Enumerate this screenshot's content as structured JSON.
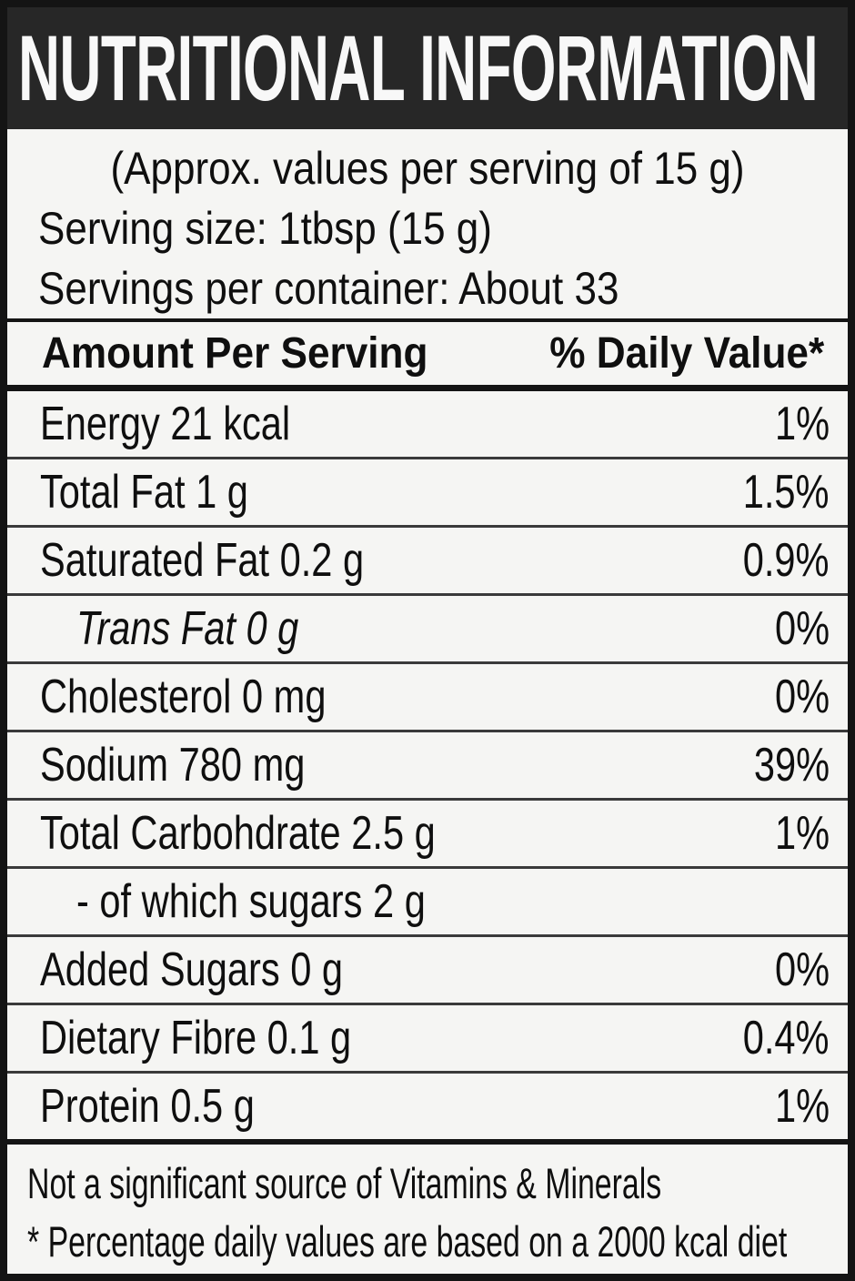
{
  "header": {
    "title": "NUTRITIONAL INFORMATION"
  },
  "serving_info": {
    "approx_note": "(Approx. values per serving of 15 g)",
    "serving_size": "Serving size: 1tbsp (15 g)",
    "servings_per_container": "Servings per container: About 33"
  },
  "table": {
    "col1_header": "Amount Per Serving",
    "col2_header": "% Daily Value*",
    "rows": [
      {
        "label": "Energy 21 kcal",
        "daily_value": "1%"
      },
      {
        "label": "Total Fat 1 g",
        "daily_value": "1.5%"
      },
      {
        "label": "Saturated Fat 0.2 g",
        "daily_value": "0.9%"
      },
      {
        "label": "Trans Fat 0 g",
        "daily_value": "0%",
        "italic": true,
        "indent": true
      },
      {
        "label": "Cholesterol 0 mg",
        "daily_value": "0%"
      },
      {
        "label": "Sodium 780 mg",
        "daily_value": "39%"
      },
      {
        "label": "Total Carbohdrate 2.5 g",
        "daily_value": "1%"
      },
      {
        "label": "- of which sugars 2 g",
        "daily_value": "",
        "indent": true
      },
      {
        "label": "Added Sugars 0 g",
        "daily_value": "0%"
      },
      {
        "label": "Dietary Fibre 0.1 g",
        "daily_value": "0.4%"
      },
      {
        "label": "Protein 0.5 g",
        "daily_value": "1%"
      }
    ]
  },
  "footer": {
    "note1": "Not a significant source of Vitamins & Minerals",
    "note2": "* Percentage daily values are based on a 2000 kcal diet"
  },
  "colors": {
    "band_background": "#272727",
    "band_text": "#f8f8f8",
    "body_background": "#f5f5f3",
    "text": "#0f0f0f",
    "thin_separator": "#3a3a3a",
    "thick_border": "#141414"
  }
}
